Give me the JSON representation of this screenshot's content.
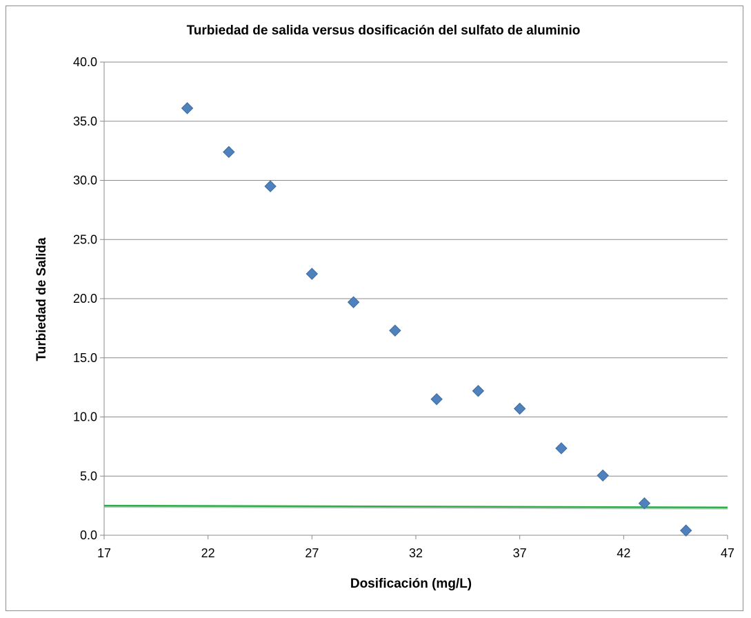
{
  "chart_data": {
    "type": "scatter",
    "title": "Turbiedad de salida versus dosificación del sulfato de aluminio",
    "xlabel": "Dosificación (mg/L)",
    "ylabel": "Turbiedad de Salida",
    "xlim": [
      17,
      47
    ],
    "ylim": [
      0,
      40
    ],
    "xticks": [
      "17",
      "22",
      "27",
      "32",
      "37",
      "42",
      "47"
    ],
    "yticks": [
      "0.0",
      "5.0",
      "10.0",
      "15.0",
      "20.0",
      "25.0",
      "30.0",
      "35.0",
      "40.0"
    ],
    "grid": true,
    "marker_color": "#4F81BD",
    "reference_line_color": "#2DAE4A",
    "series": [
      {
        "x": [
          21,
          23,
          25,
          27,
          29,
          31,
          33,
          35,
          37,
          39,
          41,
          43,
          45
        ],
        "y": [
          36.1,
          32.4,
          29.5,
          22.1,
          19.7,
          17.3,
          11.5,
          12.2,
          10.7,
          7.35,
          5.05,
          2.7,
          0.4
        ]
      }
    ],
    "reference_line": {
      "x": [
        17,
        47
      ],
      "y": [
        2.5,
        2.35
      ]
    }
  }
}
